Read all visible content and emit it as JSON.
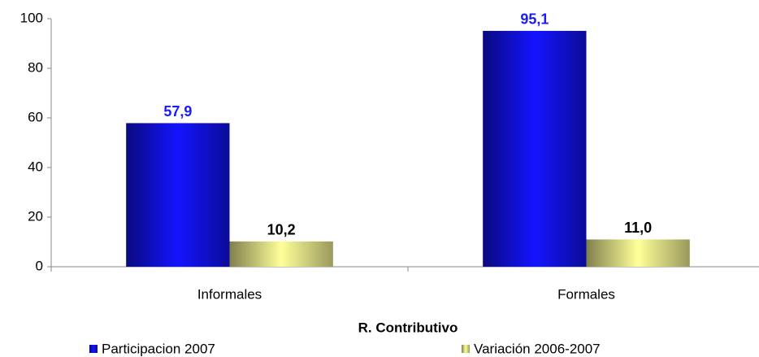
{
  "chart_data": {
    "type": "bar",
    "x_label": "R. Contributivo",
    "categories": [
      "Informales",
      "Formales"
    ],
    "series": [
      {
        "name": "Participacion 2007",
        "color": "#1414ff",
        "label_color": "#1a1aff",
        "values": [
          57.9,
          95.1
        ],
        "value_labels": [
          "57,9",
          "95,1"
        ]
      },
      {
        "name": "Variación 2006-2007",
        "color": "#ffff99",
        "label_color": "#000000",
        "values": [
          10.2,
          11.0
        ],
        "value_labels": [
          "10,2",
          "11,0"
        ]
      }
    ],
    "ylim": [
      0,
      100
    ],
    "yticks": [
      0,
      20,
      40,
      60,
      80,
      100
    ],
    "grid": false
  }
}
